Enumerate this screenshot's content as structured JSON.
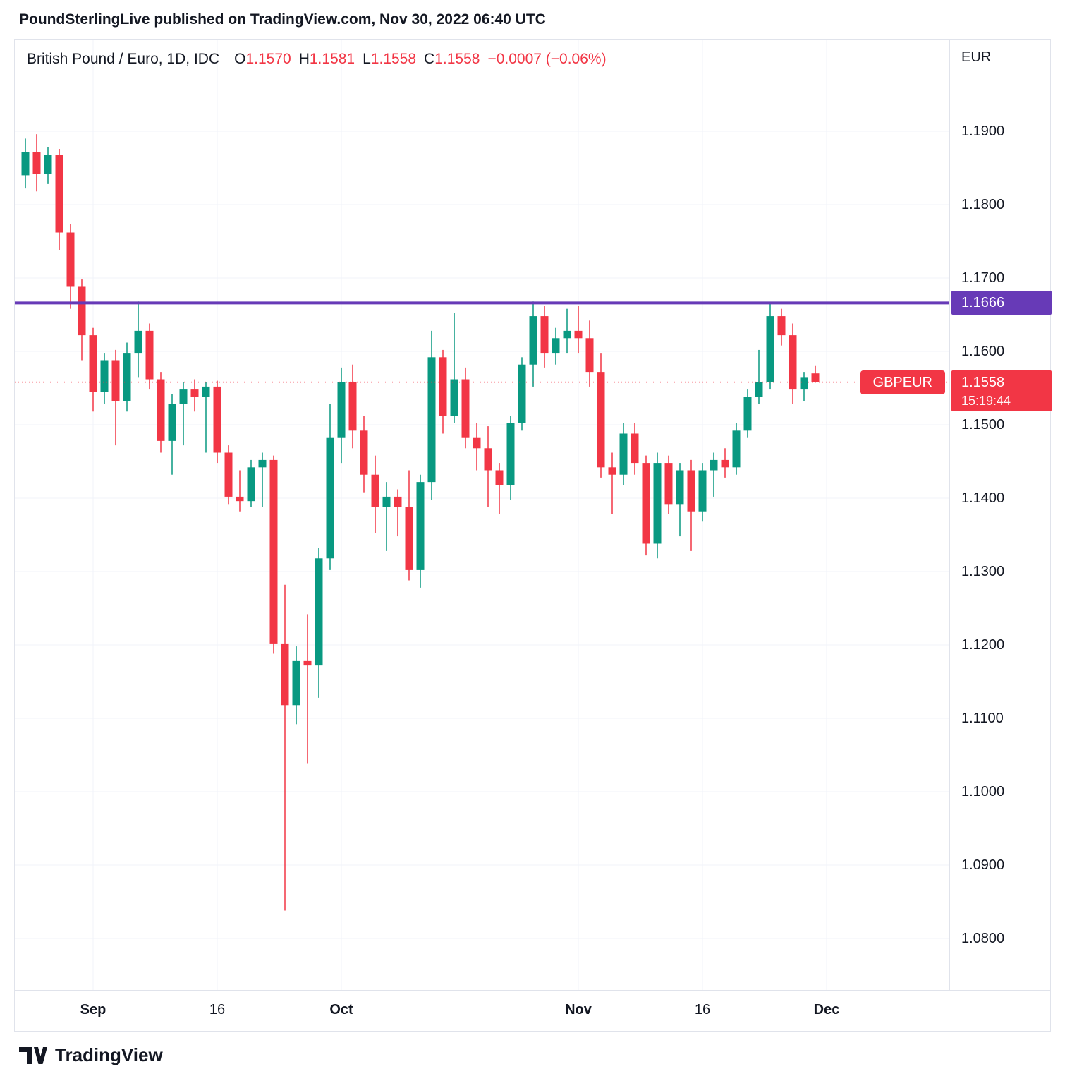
{
  "attribution": "PoundSterlingLive published on TradingView.com, Nov 30, 2022 06:40 UTC",
  "header": {
    "symbol": "British Pound / Euro, 1D, IDC",
    "ohlc": [
      {
        "label": "O",
        "value": "1.1570"
      },
      {
        "label": "H",
        "value": "1.1581"
      },
      {
        "label": "L",
        "value": "1.1558"
      },
      {
        "label": "C",
        "value": "1.1558"
      }
    ],
    "change": "−0.0007 (−0.06%)"
  },
  "y_axis": {
    "currency": "EUR",
    "labels": [
      "1.1900",
      "1.1800",
      "1.1700",
      "1.1600",
      "1.1500",
      "1.1400",
      "1.1300",
      "1.1200",
      "1.1100",
      "1.1000",
      "1.0900",
      "1.0800"
    ]
  },
  "x_axis": {
    "labels": [
      {
        "text": "Sep",
        "major": true,
        "index": 6
      },
      {
        "text": "16",
        "major": false,
        "index": 17
      },
      {
        "text": "Oct",
        "major": true,
        "index": 28
      },
      {
        "text": "Nov",
        "major": true,
        "index": 49
      },
      {
        "text": "16",
        "major": false,
        "index": 60
      },
      {
        "text": "Dec",
        "major": true,
        "index": 71
      }
    ]
  },
  "overlays": {
    "horizontal_line": {
      "price": 1.1666,
      "label": "1.1666",
      "color": "#673ab7"
    },
    "last_price": {
      "symbol_label": "GBPEUR",
      "price": 1.1558,
      "display": "1.1558",
      "countdown": "15:19:44",
      "color": "#f23645"
    }
  },
  "colors": {
    "grid": "#f0f3fa",
    "text": "#131722",
    "axis_border": "#e0e3eb"
  },
  "footer": {
    "brand": "TradingView"
  },
  "chart_data": {
    "type": "candlestick",
    "title": "British Pound / Euro",
    "symbol": "GBPEUR",
    "timeframe": "1D",
    "exchange": "IDC",
    "currency": "EUR",
    "ylim": [
      1.0743,
      1.2024
    ],
    "colors": {
      "up": "#089981",
      "down": "#f23645"
    },
    "columns": [
      "date",
      "open",
      "high",
      "low",
      "close"
    ],
    "candles": [
      [
        "2022-08-24",
        1.184,
        1.189,
        1.1822,
        1.1872
      ],
      [
        "2022-08-25",
        1.1872,
        1.1896,
        1.1818,
        1.1842
      ],
      [
        "2022-08-26",
        1.1842,
        1.1878,
        1.1828,
        1.1868
      ],
      [
        "2022-08-29",
        1.1868,
        1.1876,
        1.1738,
        1.1762
      ],
      [
        "2022-08-30",
        1.1762,
        1.1774,
        1.1658,
        1.1688
      ],
      [
        "2022-08-31",
        1.1688,
        1.1698,
        1.1588,
        1.1622
      ],
      [
        "2022-09-01",
        1.1622,
        1.1632,
        1.1518,
        1.1545
      ],
      [
        "2022-09-02",
        1.1545,
        1.1598,
        1.1528,
        1.1588
      ],
      [
        "2022-09-05",
        1.1588,
        1.1602,
        1.1472,
        1.1532
      ],
      [
        "2022-09-06",
        1.1532,
        1.1612,
        1.1518,
        1.1598
      ],
      [
        "2022-09-07",
        1.1598,
        1.1668,
        1.1565,
        1.1628
      ],
      [
        "2022-09-08",
        1.1628,
        1.1638,
        1.1548,
        1.1562
      ],
      [
        "2022-09-09",
        1.1562,
        1.1572,
        1.1462,
        1.1478
      ],
      [
        "2022-09-12",
        1.1478,
        1.1542,
        1.1432,
        1.1528
      ],
      [
        "2022-09-13",
        1.1528,
        1.1558,
        1.1472,
        1.1548
      ],
      [
        "2022-09-14",
        1.1548,
        1.1562,
        1.1518,
        1.1538
      ],
      [
        "2022-09-15",
        1.1538,
        1.1558,
        1.1462,
        1.1552
      ],
      [
        "2022-09-16",
        1.1552,
        1.156,
        1.1448,
        1.1462
      ],
      [
        "2022-09-19",
        1.1462,
        1.1472,
        1.1392,
        1.1402
      ],
      [
        "2022-09-20",
        1.1402,
        1.1438,
        1.1382,
        1.1396
      ],
      [
        "2022-09-21",
        1.1396,
        1.1452,
        1.1388,
        1.1442
      ],
      [
        "2022-09-22",
        1.1442,
        1.1462,
        1.1388,
        1.1452
      ],
      [
        "2022-09-23",
        1.1452,
        1.1458,
        1.1188,
        1.1202
      ],
      [
        "2022-09-26",
        1.1202,
        1.1282,
        1.0838,
        1.1118
      ],
      [
        "2022-09-27",
        1.1118,
        1.1198,
        1.1092,
        1.1178
      ],
      [
        "2022-09-28",
        1.1178,
        1.1242,
        1.1038,
        1.1172
      ],
      [
        "2022-09-29",
        1.1172,
        1.1332,
        1.1128,
        1.1318
      ],
      [
        "2022-09-30",
        1.1318,
        1.1528,
        1.1302,
        1.1482
      ],
      [
        "2022-10-03",
        1.1482,
        1.1578,
        1.1448,
        1.1558
      ],
      [
        "2022-10-04",
        1.1558,
        1.1582,
        1.1468,
        1.1492
      ],
      [
        "2022-10-05",
        1.1492,
        1.1512,
        1.1408,
        1.1432
      ],
      [
        "2022-10-06",
        1.1432,
        1.1458,
        1.1352,
        1.1388
      ],
      [
        "2022-10-07",
        1.1388,
        1.1422,
        1.1328,
        1.1402
      ],
      [
        "2022-10-10",
        1.1402,
        1.1412,
        1.1348,
        1.1388
      ],
      [
        "2022-10-11",
        1.1388,
        1.1438,
        1.1288,
        1.1302
      ],
      [
        "2022-10-12",
        1.1302,
        1.1432,
        1.1278,
        1.1422
      ],
      [
        "2022-10-13",
        1.1422,
        1.1628,
        1.1398,
        1.1592
      ],
      [
        "2022-10-14",
        1.1592,
        1.1602,
        1.1488,
        1.1512
      ],
      [
        "2022-10-17",
        1.1512,
        1.1652,
        1.1502,
        1.1562
      ],
      [
        "2022-10-18",
        1.1562,
        1.1578,
        1.1468,
        1.1482
      ],
      [
        "2022-10-19",
        1.1482,
        1.1502,
        1.1438,
        1.1468
      ],
      [
        "2022-10-20",
        1.1468,
        1.1498,
        1.1388,
        1.1438
      ],
      [
        "2022-10-21",
        1.1438,
        1.1448,
        1.1378,
        1.1418
      ],
      [
        "2022-10-24",
        1.1418,
        1.1512,
        1.1398,
        1.1502
      ],
      [
        "2022-10-25",
        1.1502,
        1.1592,
        1.1492,
        1.1582
      ],
      [
        "2022-10-26",
        1.1582,
        1.1668,
        1.1552,
        1.1648
      ],
      [
        "2022-10-27",
        1.1648,
        1.1662,
        1.1578,
        1.1598
      ],
      [
        "2022-10-28",
        1.1598,
        1.1632,
        1.1582,
        1.1618
      ],
      [
        "2022-10-31",
        1.1618,
        1.1658,
        1.1598,
        1.1628
      ],
      [
        "2022-11-01",
        1.1628,
        1.1662,
        1.1598,
        1.1618
      ],
      [
        "2022-11-02",
        1.1618,
        1.1642,
        1.1552,
        1.1572
      ],
      [
        "2022-11-03",
        1.1572,
        1.1598,
        1.1428,
        1.1442
      ],
      [
        "2022-11-04",
        1.1442,
        1.1462,
        1.1378,
        1.1432
      ],
      [
        "2022-11-07",
        1.1432,
        1.1502,
        1.1418,
        1.1488
      ],
      [
        "2022-11-08",
        1.1488,
        1.1502,
        1.1432,
        1.1448
      ],
      [
        "2022-11-09",
        1.1448,
        1.1458,
        1.1322,
        1.1338
      ],
      [
        "2022-11-10",
        1.1338,
        1.1462,
        1.1318,
        1.1448
      ],
      [
        "2022-11-11",
        1.1448,
        1.1458,
        1.1378,
        1.1392
      ],
      [
        "2022-11-14",
        1.1392,
        1.1448,
        1.1348,
        1.1438
      ],
      [
        "2022-11-15",
        1.1438,
        1.1452,
        1.1328,
        1.1382
      ],
      [
        "2022-11-16",
        1.1382,
        1.1448,
        1.1368,
        1.1438
      ],
      [
        "2022-11-17",
        1.1438,
        1.1462,
        1.1402,
        1.1452
      ],
      [
        "2022-11-18",
        1.1452,
        1.1468,
        1.1428,
        1.1442
      ],
      [
        "2022-11-21",
        1.1442,
        1.1502,
        1.1432,
        1.1492
      ],
      [
        "2022-11-22",
        1.1492,
        1.1548,
        1.1482,
        1.1538
      ],
      [
        "2022-11-23",
        1.1538,
        1.1602,
        1.1528,
        1.1558
      ],
      [
        "2022-11-24",
        1.1558,
        1.1666,
        1.1548,
        1.1648
      ],
      [
        "2022-11-25",
        1.1648,
        1.1658,
        1.1608,
        1.1622
      ],
      [
        "2022-11-28",
        1.1622,
        1.1638,
        1.1528,
        1.1548
      ],
      [
        "2022-11-29",
        1.1548,
        1.1572,
        1.1532,
        1.1565
      ],
      [
        "2022-11-30",
        1.157,
        1.1581,
        1.1558,
        1.1558
      ]
    ]
  }
}
